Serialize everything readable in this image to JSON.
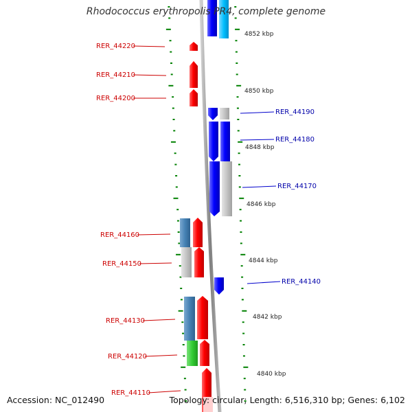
{
  "title": "Rhodococcus erythropolis PR4, complete genome",
  "footer": {
    "accession": "Accession: NC_012490",
    "summary": "Topology: circular; Length: 6,516,310 bp; Genes: 6,102"
  },
  "colors": {
    "forward": "#ff0000",
    "reverse": "#0000ff",
    "neutral": "#c0c0c0",
    "steelblue": "#4682b4",
    "green": "#33cc33",
    "cyan": "#00bfff",
    "tick": "#008000",
    "backbone": "#808080"
  },
  "scale_labels": [
    "4852 kbp",
    "4850 kbp",
    "4848 kbp",
    "4846 kbp",
    "4844 kbp",
    "4842 kbp",
    "4840 kbp"
  ],
  "genes": [
    {
      "id": "RER_44220",
      "strand": "forward"
    },
    {
      "id": "RER_44210",
      "strand": "forward"
    },
    {
      "id": "RER_44200",
      "strand": "forward"
    },
    {
      "id": "RER_44190",
      "strand": "reverse"
    },
    {
      "id": "RER_44180",
      "strand": "reverse"
    },
    {
      "id": "RER_44170",
      "strand": "reverse"
    },
    {
      "id": "RER_44160",
      "strand": "forward"
    },
    {
      "id": "RER_44150",
      "strand": "forward"
    },
    {
      "id": "RER_44140",
      "strand": "reverse"
    },
    {
      "id": "RER_44130",
      "strand": "forward"
    },
    {
      "id": "RER_44120",
      "strand": "forward"
    },
    {
      "id": "RER_44110",
      "strand": "forward"
    }
  ]
}
